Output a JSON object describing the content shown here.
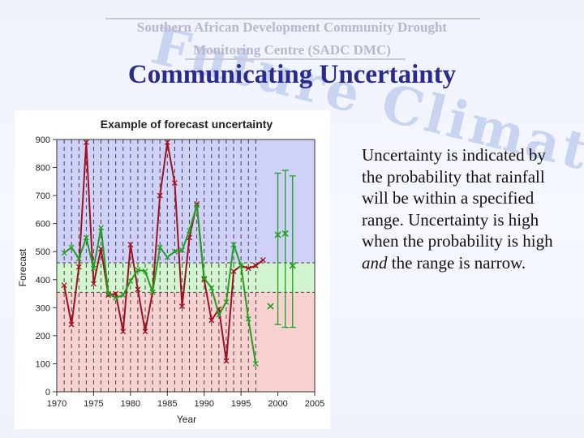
{
  "slide": {
    "org_line1": "Southern African Development Community Drought",
    "org_line2": "Monitoring Centre (SADC DMC)",
    "title": "Communicating Uncertainty",
    "watermark": "Future Climate",
    "body_part1": "Uncertainty is indicated by the probability that rainfall will be within a specified range. Uncertainty is high when the probability is high ",
    "body_em": "and",
    "body_part2": " the range is narrow."
  },
  "colors": {
    "band_upper": "#cfd1f8",
    "band_middle": "#d2f5cf",
    "band_lower": "#f8d1d1",
    "observed": "#a01020",
    "forecast": "#20a020",
    "title_blue": "#2a2a8a"
  },
  "chart_data": {
    "type": "line",
    "title": "Example of forecast uncertainty",
    "xlabel": "Year",
    "ylabel": "Forecast",
    "xlim": [
      1970,
      2005
    ],
    "ylim": [
      0,
      900
    ],
    "xticks": [
      1970,
      1975,
      1980,
      1985,
      1990,
      1995,
      2000,
      2005
    ],
    "yticks": [
      0,
      100,
      200,
      300,
      400,
      500,
      600,
      700,
      800,
      900
    ],
    "bands": [
      {
        "from": 460,
        "to": 900,
        "color": "#cfd1f8"
      },
      {
        "from": 355,
        "to": 460,
        "color": "#d2f5cf"
      },
      {
        "from": 0,
        "to": 355,
        "color": "#f8d1d1"
      }
    ],
    "dashed_years": [
      1971,
      1972,
      1973,
      1974,
      1975,
      1976,
      1977,
      1978,
      1979,
      1980,
      1981,
      1982,
      1983,
      1984,
      1985,
      1986,
      1987,
      1988,
      1989,
      1990,
      1991,
      1992,
      1993,
      1994,
      1995,
      1996,
      1997
    ],
    "series": [
      {
        "color": "#a01020",
        "x": [
          1971,
          1972,
          1973,
          1974,
          1975,
          1976,
          1977,
          1978,
          1979,
          1980,
          1981,
          1982,
          1983,
          1984,
          1985,
          1986,
          1987,
          1988,
          1989,
          1990,
          1991,
          1992,
          1993,
          1994,
          1995,
          1996,
          1997,
          1998
        ],
        "y": [
          380,
          240,
          445,
          890,
          385,
          510,
          345,
          350,
          215,
          525,
          365,
          215,
          355,
          700,
          890,
          745,
          305,
          550,
          670,
          400,
          255,
          295,
          110,
          430,
          450,
          440,
          450,
          470
        ]
      },
      {
        "color": "#20a020",
        "x": [
          1971,
          1972,
          1973,
          1974,
          1975,
          1976,
          1977,
          1978,
          1979,
          1980,
          1981,
          1982,
          1983,
          1984,
          1985,
          1986,
          1987,
          1988,
          1989,
          1990,
          1991,
          1992,
          1993,
          1994,
          1995,
          1996,
          1997,
          1998,
          1999
        ],
        "y": [
          495,
          515,
          475,
          550,
          440,
          585,
          350,
          335,
          345,
          395,
          435,
          430,
          355,
          515,
          480,
          500,
          505,
          575,
          665,
          405,
          370,
          275,
          320,
          525,
          450,
          260,
          100,
          null,
          305
        ]
      }
    ],
    "forecast_points": [
      {
        "x": 1999,
        "y": 305
      },
      {
        "x": 2000,
        "y": 560,
        "low": 240,
        "high": 780
      },
      {
        "x": 2001,
        "y": 565,
        "low": 230,
        "high": 790
      },
      {
        "x": 2002,
        "y": 450,
        "low": 230,
        "high": 770
      }
    ]
  }
}
